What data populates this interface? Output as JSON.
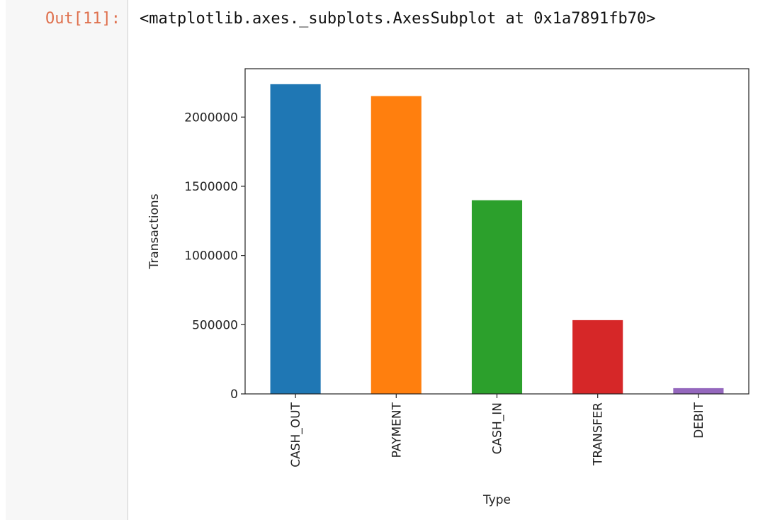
{
  "cell": {
    "prompt": "Out[11]:",
    "output_text": "<matplotlib.axes._subplots.AxesSubplot at 0x1a7891fb70>"
  },
  "chart_data": {
    "type": "bar",
    "categories": [
      "CASH_OUT",
      "PAYMENT",
      "CASH_IN",
      "TRANSFER",
      "DEBIT"
    ],
    "values": [
      2237500,
      2151495,
      1399284,
      532909,
      41432
    ],
    "colors": [
      "#1f77b4",
      "#ff7f0e",
      "#2ca02c",
      "#d62728",
      "#9467bd"
    ],
    "xlabel": "Type",
    "ylabel": "Transactions",
    "ylim": [
      0,
      2349375
    ],
    "yticks": [
      0,
      500000,
      1000000,
      1500000,
      2000000
    ],
    "ytick_labels": [
      "0",
      "500000",
      "1000000",
      "1500000",
      "2000000"
    ],
    "grid": false
  }
}
